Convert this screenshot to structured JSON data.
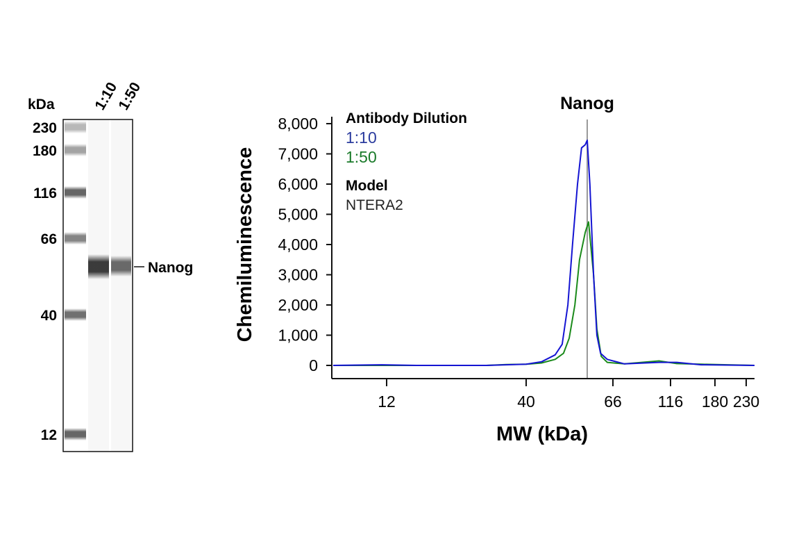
{
  "gel": {
    "unit_label": "kDa",
    "lane_labels": [
      "1:10",
      "1:50"
    ],
    "marker_labels": [
      "230",
      "180",
      "116",
      "66",
      "40",
      "12"
    ],
    "marker_values": [
      230,
      180,
      116,
      66,
      40,
      12
    ],
    "band_label": "Nanog",
    "band_kda": 58
  },
  "chart_data": {
    "type": "line",
    "title": "Nanog",
    "xlabel": "MW (kDa)",
    "ylabel": "Chemiluminescence",
    "xticks": [
      12,
      40,
      66,
      116,
      180,
      230
    ],
    "xtick_labels": [
      "12",
      "40",
      "66",
      "116",
      "180",
      "230"
    ],
    "xlim": [
      1,
      243
    ],
    "x_scale": "non-linear (ladder calibrated)",
    "yticks": [
      0,
      1000,
      2000,
      3000,
      4000,
      5000,
      6000,
      7000,
      8000
    ],
    "ytick_labels": [
      "0",
      "1,000",
      "2,000",
      "3,000",
      "4,000",
      "5,000",
      "6,000",
      "7,000",
      "8,000"
    ],
    "ylim": [
      0,
      8000
    ],
    "grid": false,
    "reference_line_kda": 58.3,
    "legend": {
      "title": "Antibody Dilution",
      "model_title": "Model",
      "model": "NTERA2",
      "placement": "top-left"
    },
    "series": [
      {
        "name": "1:10",
        "color": "#1414d2",
        "label_color": "#2b3c9e",
        "x": [
          1,
          11,
          18,
          32,
          36,
          40,
          44.6,
          48.7,
          50.8,
          52.5,
          53.9,
          55.4,
          56.6,
          57.7,
          58.3,
          59.1,
          60.2,
          61.2,
          62.3,
          64.3,
          76,
          106,
          125,
          160,
          243
        ],
        "y": [
          0,
          20,
          0,
          0,
          20,
          40,
          120,
          350,
          700,
          2000,
          4000,
          6000,
          7200,
          7300,
          7450,
          6000,
          3000,
          1000,
          400,
          200,
          50,
          100,
          100,
          20,
          0
        ]
      },
      {
        "name": "1:50",
        "color": "#1a8a1a",
        "label_color": "#1a7a2a",
        "x": [
          1,
          11,
          18,
          32,
          36,
          40,
          44.6,
          48.7,
          51.2,
          52.9,
          54.6,
          56,
          57.7,
          58.7,
          60.2,
          61.2,
          62.5,
          64.3,
          76,
          106,
          125,
          160,
          243
        ],
        "y": [
          0,
          0,
          0,
          0,
          30,
          40,
          80,
          200,
          400,
          900,
          2000,
          3500,
          4400,
          4750,
          3000,
          1200,
          300,
          100,
          50,
          150,
          60,
          40,
          0
        ]
      }
    ]
  }
}
